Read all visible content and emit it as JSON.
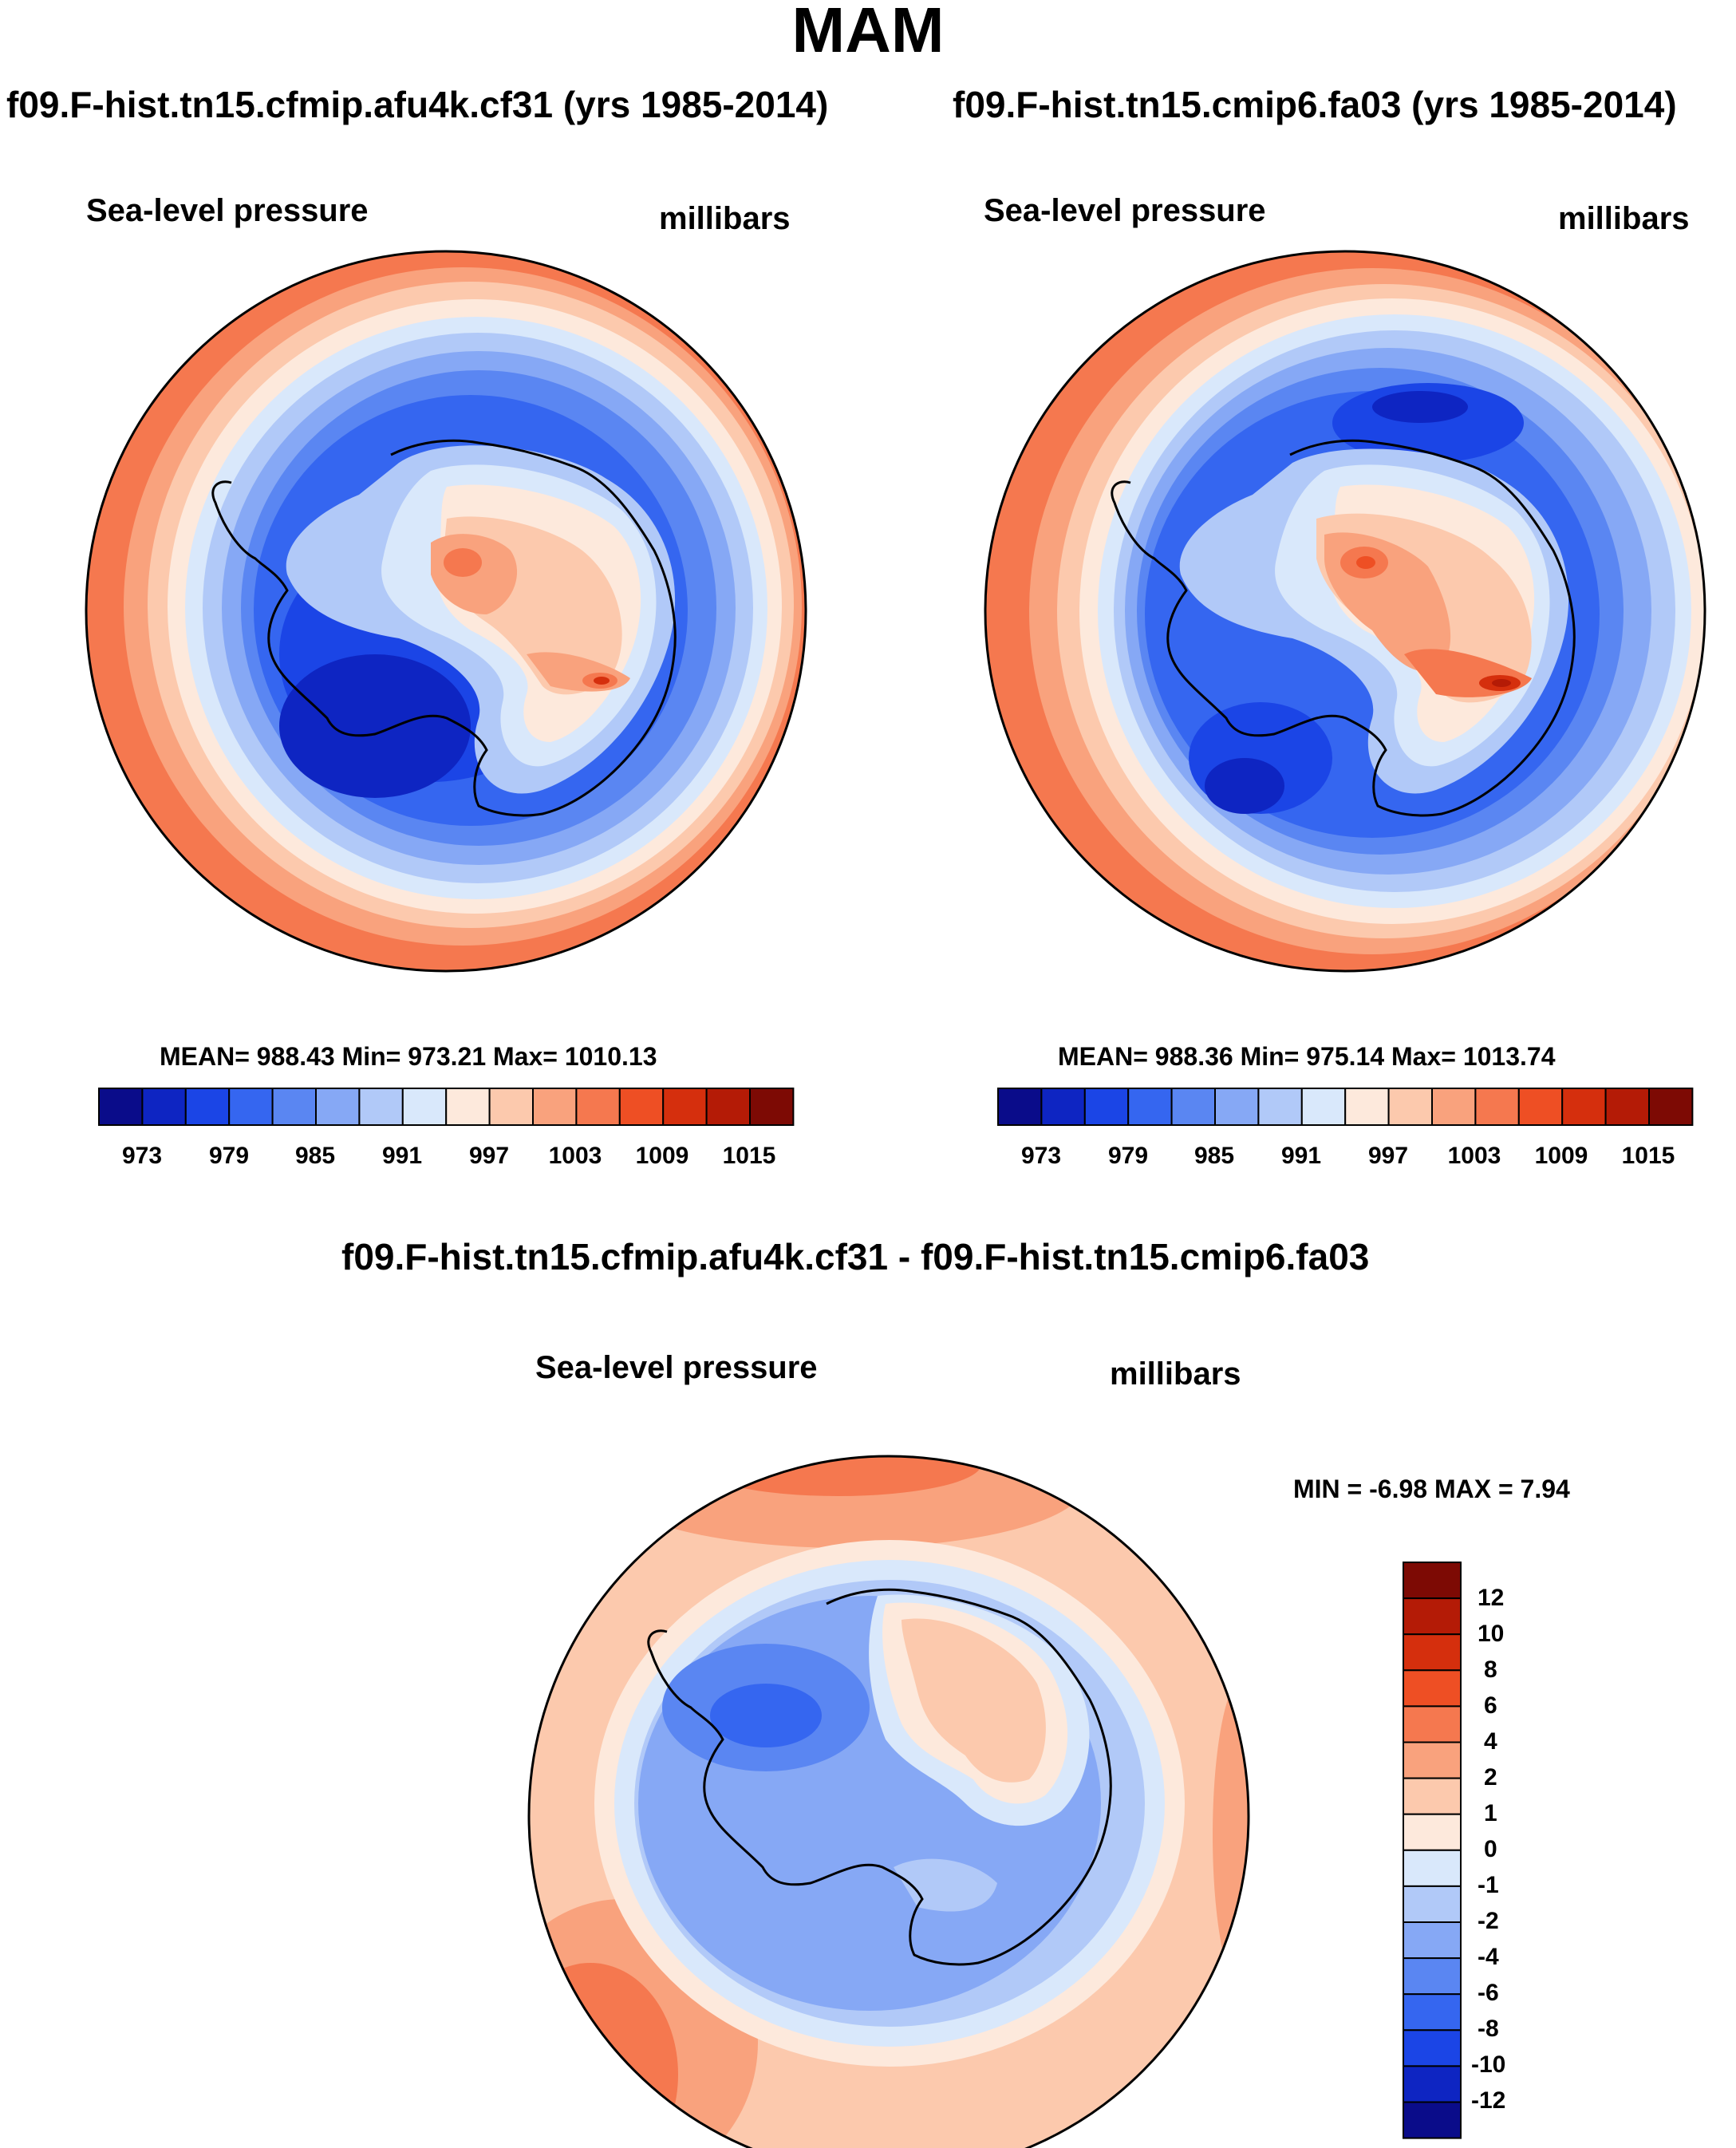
{
  "title": "MAM",
  "panels": [
    {
      "case_title": "f09.F-hist.tn15.cfmip.afu4k.cf31 (yrs 1985-2014)",
      "variable": "Sea-level pressure",
      "units": "millibars",
      "stats": "MEAN= 988.43  Min= 973.21  Max= 1010.13"
    },
    {
      "case_title": "f09.F-hist.tn15.cmip6.fa03 (yrs 1985-2014)",
      "variable": "Sea-level pressure",
      "units": "millibars",
      "stats": "MEAN= 988.36  Min= 975.14  Max= 1013.74"
    }
  ],
  "diff_panel": {
    "title": "f09.F-hist.tn15.cfmip.afu4k.cf31 - f09.F-hist.tn15.cmip6.fa03",
    "variable": "Sea-level pressure",
    "units": "millibars",
    "minmax": "MIN =  -6.98 MAX =   7.94"
  },
  "colorbar": {
    "colors": [
      "#0a0c8a",
      "#0e25c2",
      "#1b45e6",
      "#3566f0",
      "#5a86f2",
      "#86a8f5",
      "#b1c9f8",
      "#d9e8fb",
      "#fde9dc",
      "#fcc9ad",
      "#f9a27d",
      "#f5784f",
      "#ee4f24",
      "#d52f0d",
      "#b41b06",
      "#7d0a04"
    ],
    "labels": [
      "973",
      "979",
      "985",
      "991",
      "997",
      "1003",
      "1009",
      "1015"
    ]
  },
  "diff_colorbar": {
    "colors": [
      "#0a0c8a",
      "#0e25c2",
      "#1b45e6",
      "#3566f0",
      "#5a86f2",
      "#86a8f5",
      "#b1c9f8",
      "#d9e8fb",
      "#fde9dc",
      "#fcc9ad",
      "#f9a27d",
      "#f5784f",
      "#ee4f24",
      "#d52f0d",
      "#b41b06",
      "#7d0a04"
    ],
    "labels": [
      "12",
      "10",
      "8",
      "6",
      "4",
      "2",
      "1",
      "0",
      "-1",
      "-2",
      "-4",
      "-6",
      "-8",
      "-10",
      "-12"
    ]
  }
}
